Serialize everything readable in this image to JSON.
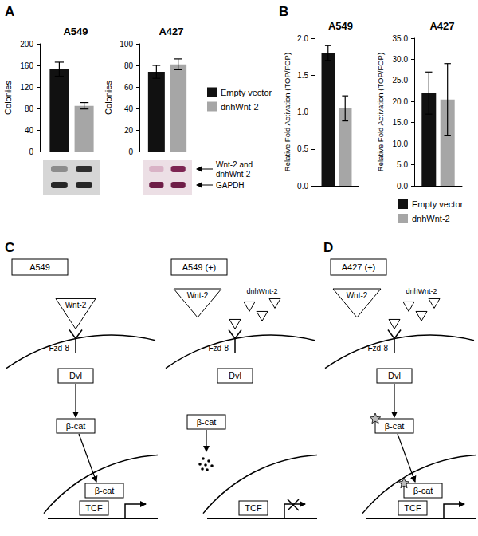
{
  "chart_data": [
    {
      "type": "bar",
      "title": "A549",
      "y_label": "Colonies",
      "categories": [
        null
      ],
      "series": [
        {
          "name": "Empty vector",
          "color": "#111111",
          "values": [
            153
          ],
          "errors": [
            13
          ]
        },
        {
          "name": "dnhWnt-2",
          "color": "#a6a6a6",
          "values": [
            85
          ],
          "errors": [
            6
          ]
        }
      ],
      "ylim": [
        0,
        200
      ],
      "yticks": [
        0,
        40,
        80,
        120,
        160,
        200
      ],
      "grid": false,
      "tick_labels": "y"
    },
    {
      "type": "bar",
      "title": "A427",
      "y_label": "Colonies",
      "categories": [
        null
      ],
      "series": [
        {
          "name": "Empty vector",
          "color": "#111111",
          "values": [
            74
          ],
          "errors": [
            6
          ]
        },
        {
          "name": "dnhWnt-2",
          "color": "#a6a6a6",
          "values": [
            81
          ],
          "errors": [
            5
          ]
        }
      ],
      "ylim": [
        0,
        100
      ],
      "yticks": [
        0,
        20,
        40,
        60,
        80,
        100
      ],
      "grid": false,
      "tick_labels": "y",
      "legend": "right"
    },
    {
      "type": "bar",
      "title": "A549",
      "y_label": "Relative Fold Activation (TOP/FOP)",
      "categories": [
        null
      ],
      "series": [
        {
          "name": "Empty vector",
          "color": "#111111",
          "values": [
            1.8
          ],
          "errors": [
            0.1
          ]
        },
        {
          "name": "dnhWnt-2",
          "color": "#a6a6a6",
          "values": [
            1.05
          ],
          "errors": [
            0.17
          ]
        }
      ],
      "ylim": [
        0,
        2
      ],
      "yticks": [
        {
          "value": 0,
          "label": "0.0"
        },
        0.5,
        {
          "value": 1,
          "label": "1.0"
        },
        1.5,
        {
          "value": 2,
          "label": "2.0"
        }
      ],
      "grid": false,
      "tick_labels": "y"
    },
    {
      "type": "bar",
      "title": "A427",
      "y_label": "Relative Fold Activation (TOP/FOP)",
      "categories": [
        null
      ],
      "series": [
        {
          "name": "Empty vector",
          "color": "#111111",
          "values": [
            22
          ],
          "errors": [
            5
          ]
        },
        {
          "name": "dnhWnt-2",
          "color": "#a6a6a6",
          "values": [
            20.5
          ],
          "errors": [
            8.5
          ]
        }
      ],
      "ylim": [
        0,
        35
      ],
      "yticks": [
        {
          "value": 0,
          "label": "0.0"
        },
        {
          "value": 5,
          "label": "5.0"
        },
        {
          "value": 10,
          "label": "10.0"
        },
        {
          "value": 15,
          "label": "15.0"
        },
        {
          "value": 20,
          "label": "20.0"
        },
        {
          "value": 25,
          "label": "25.0"
        },
        {
          "value": 30,
          "label": "30.0"
        },
        {
          "value": 35,
          "label": "35.0"
        }
      ],
      "grid": false,
      "tick_labels": "y",
      "legend": "bottom"
    }
  ],
  "panel_labels": [
    "A",
    "B"
  ],
  "gel": {
    "labels": [
      [
        "Wnt-2 and",
        "dnhWnt-2"
      ],
      [
        "GAPDH"
      ]
    ]
  },
  "diagrams": [
    {
      "panel": "C",
      "cells": [
        {
          "title": "A549",
          "ligand": "Wnt-2",
          "receptor": "Fzd-8",
          "adaptor": "Dvl",
          "effector": "β-cat",
          "factor": "TCF",
          "transcription": true,
          "mutant": false
        },
        {
          "title": "A549 (+)",
          "ligand": "Wnt-2",
          "inhibitor": "dnhWnt-2",
          "receptor": "Fzd-8",
          "adaptor": "Dvl",
          "effector": "β-cat",
          "factor": "TCF",
          "transcription": false,
          "mutant": false
        }
      ]
    },
    {
      "panel": "D",
      "cells": [
        {
          "title": "A427 (+)",
          "ligand": "Wnt-2",
          "inhibitor": "dnhWnt-2",
          "receptor": "Fzd-8",
          "adaptor": "Dvl",
          "effector": "β-cat",
          "factor": "TCF",
          "transcription": true,
          "mutant": true
        }
      ]
    }
  ]
}
